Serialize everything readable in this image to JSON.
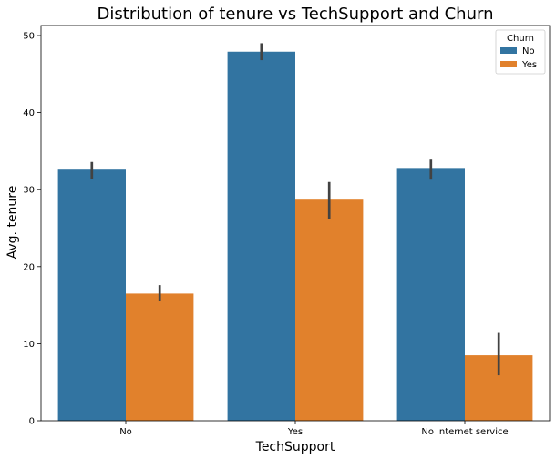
{
  "chart_data": {
    "type": "bar",
    "title": "Distribution of tenure vs TechSupport and Churn",
    "xlabel": "TechSupport",
    "ylabel": "Avg. tenure",
    "categories": [
      "No",
      "Yes",
      "No internet service"
    ],
    "ylim": [
      0,
      51.3
    ],
    "yticks": [
      0,
      10,
      20,
      30,
      40,
      50
    ],
    "grid": false,
    "legend": {
      "title": "Churn",
      "placement": "top-right"
    },
    "series": [
      {
        "name": "No",
        "color": "#3274a1",
        "values": [
          32.6,
          47.9,
          32.7
        ],
        "error_low": [
          31.4,
          46.8,
          31.3
        ],
        "error_high": [
          33.6,
          49.0,
          33.9
        ]
      },
      {
        "name": "Yes",
        "color": "#e1812c",
        "values": [
          16.5,
          28.7,
          8.5
        ],
        "error_low": [
          15.5,
          26.2,
          5.9
        ],
        "error_high": [
          17.6,
          31.0,
          11.4
        ]
      }
    ]
  }
}
